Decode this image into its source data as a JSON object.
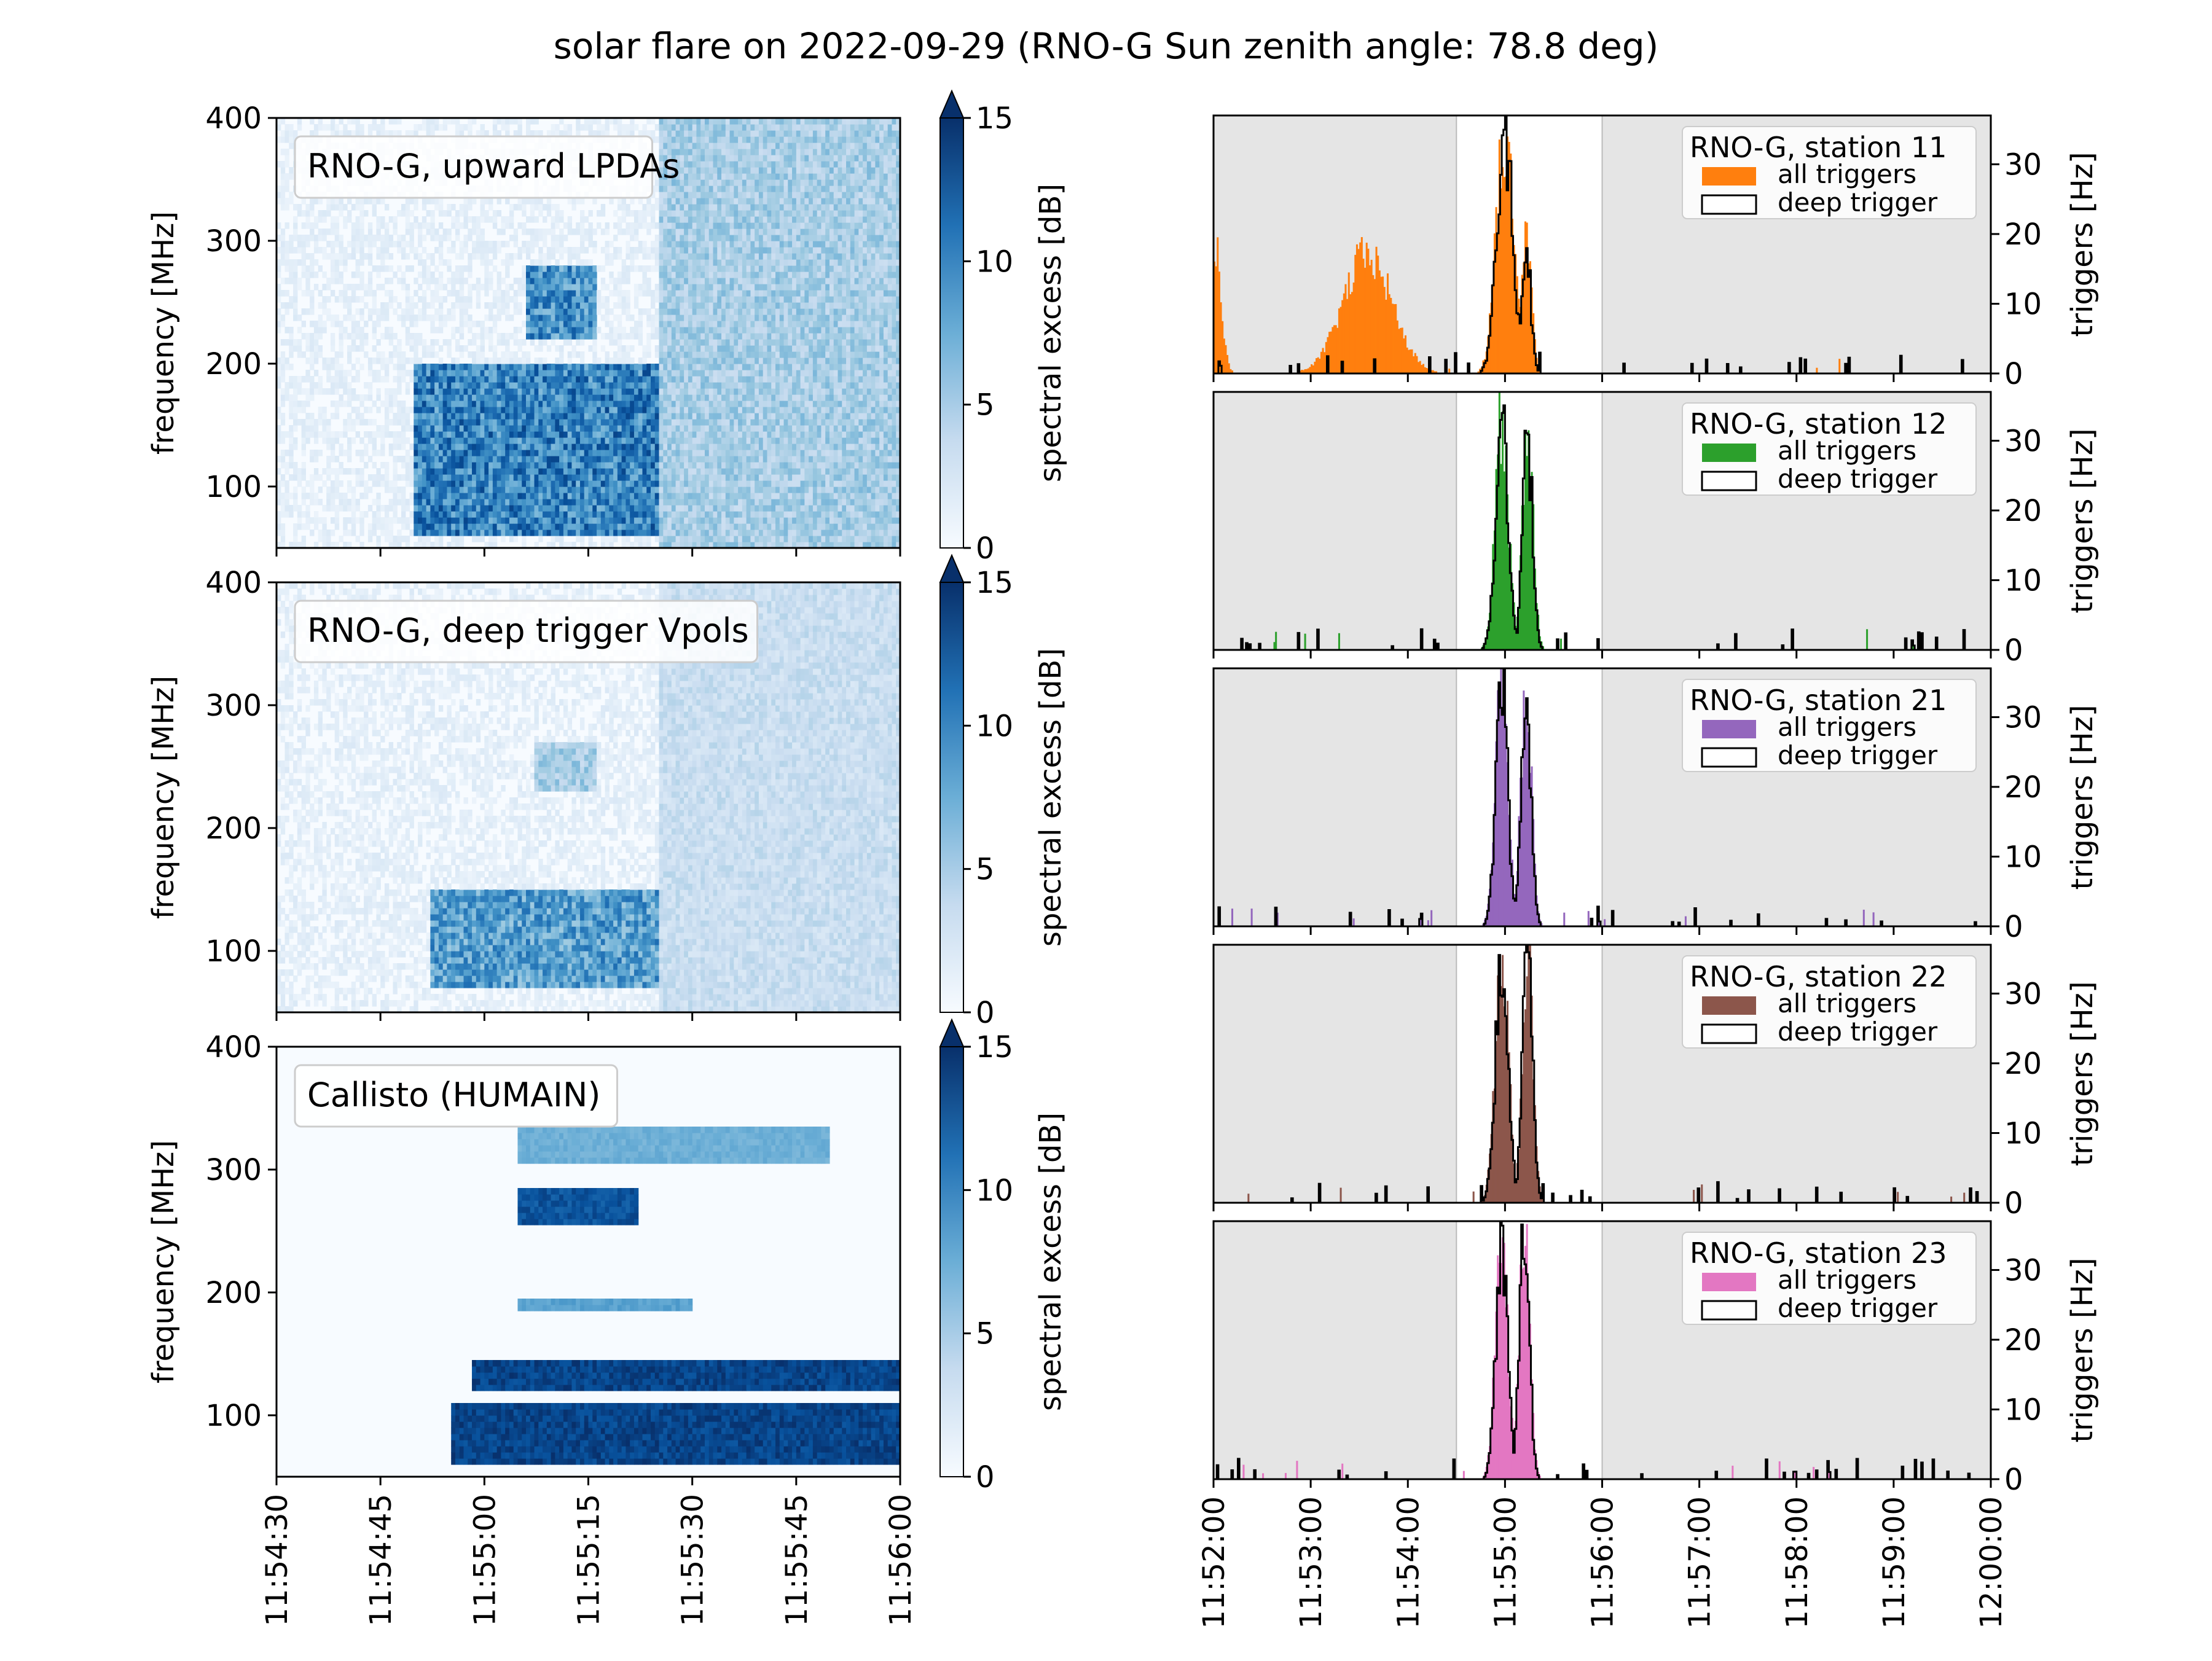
{
  "title": "solar flare on 2022-09-29 (RNO-G Sun zenith angle: 78.8 deg)",
  "colors": {
    "cmap_light": "#f7fbff",
    "cmap_mid": "#6baed6",
    "cmap_dark": "#08306b",
    "shade": "#e5e5e5",
    "outline": "#000000"
  },
  "chart_data": [
    {
      "type": "heatmap",
      "label": "RNO-G, upward LPDAs",
      "ylabel": "frequency [MHz]",
      "ylim": [
        50,
        400
      ],
      "yticks": [
        "100",
        "200",
        "300",
        "400"
      ],
      "xlim": [
        "11:54:30",
        "11:56:00"
      ],
      "colorbar": {
        "label": "spectral excess [dB]",
        "ticks": [
          "0",
          "5",
          "10",
          "15"
        ],
        "range": [
          0,
          15
        ],
        "extend": "max"
      },
      "features": [
        {
          "t": [
            "11:54:50",
            "11:55:25"
          ],
          "f": [
            60,
            200
          ],
          "level": 12
        },
        {
          "t": [
            "11:55:06",
            "11:55:16"
          ],
          "f": [
            220,
            280
          ],
          "level": 11
        },
        {
          "t": [
            "11:55:25",
            "11:56:00"
          ],
          "f": [
            50,
            400
          ],
          "level": 6
        }
      ]
    },
    {
      "type": "heatmap",
      "label": "RNO-G, deep trigger Vpols",
      "ylabel": "frequency [MHz]",
      "ylim": [
        50,
        400
      ],
      "yticks": [
        "100",
        "200",
        "300",
        "400"
      ],
      "xlim": [
        "11:54:30",
        "11:56:00"
      ],
      "colorbar": {
        "label": "spectral excess [dB]",
        "ticks": [
          "0",
          "5",
          "10",
          "15"
        ],
        "range": [
          0,
          15
        ],
        "extend": "max"
      },
      "features": [
        {
          "t": [
            "11:54:52",
            "11:55:25"
          ],
          "f": [
            70,
            150
          ],
          "level": 10
        },
        {
          "t": [
            "11:55:07",
            "11:55:16"
          ],
          "f": [
            230,
            270
          ],
          "level": 6
        },
        {
          "t": [
            "11:55:25",
            "11:56:00"
          ],
          "f": [
            50,
            400
          ],
          "level": 4
        }
      ]
    },
    {
      "type": "heatmap",
      "label": "Callisto (HUMAIN)",
      "ylabel": "frequency [MHz]",
      "ylim": [
        50,
        400
      ],
      "yticks": [
        "100",
        "200",
        "300",
        "400"
      ],
      "xlim": [
        "11:54:30",
        "11:56:00"
      ],
      "xticks": [
        "11:54:30",
        "11:54:45",
        "11:55:00",
        "11:55:15",
        "11:55:30",
        "11:55:45",
        "11:56:00"
      ],
      "colorbar": {
        "label": "spectral excess [dB]",
        "ticks": [
          "0",
          "5",
          "10",
          "15"
        ],
        "range": [
          0,
          15
        ],
        "extend": "max"
      },
      "features": [
        {
          "t": [
            "11:54:58",
            "11:56:00"
          ],
          "f": [
            120,
            145
          ],
          "level": 15
        },
        {
          "t": [
            "11:54:55",
            "11:56:00"
          ],
          "f": [
            60,
            110
          ],
          "level": 15
        },
        {
          "t": [
            "11:55:05",
            "11:55:22"
          ],
          "f": [
            255,
            285
          ],
          "level": 14
        },
        {
          "t": [
            "11:55:05",
            "11:55:50"
          ],
          "f": [
            305,
            335
          ],
          "level": 8
        },
        {
          "t": [
            "11:55:05",
            "11:55:30"
          ],
          "f": [
            185,
            195
          ],
          "level": 9
        }
      ]
    },
    {
      "type": "bar",
      "station": "RNO-G, station 11",
      "ylabel": "triggers [Hz]",
      "ylim": [
        0,
        37
      ],
      "yticks": [
        "0",
        "10",
        "20",
        "30"
      ],
      "xlim": [
        "11:52:00",
        "12:00:00"
      ],
      "shaded": [
        [
          "11:52:00",
          "11:54:30"
        ],
        [
          "11:56:00",
          "12:00:00"
        ]
      ],
      "color": "#ff7f0e",
      "legend": [
        "all triggers",
        "deep trigger"
      ],
      "all_triggers_peaks": [
        {
          "t": "11:52:00",
          "hz": 20,
          "width_min": 0.15
        },
        {
          "t": "11:53:35",
          "hz": 17,
          "width_min": 0.55
        },
        {
          "t": "11:55:00",
          "hz": 35,
          "width_min": 0.2
        },
        {
          "t": "11:55:13",
          "hz": 19,
          "width_min": 0.12
        }
      ],
      "deep_trigger_peaks": [
        {
          "t": "11:55:00",
          "hz": 34,
          "width_min": 0.18
        },
        {
          "t": "11:55:13",
          "hz": 19,
          "width_min": 0.1
        }
      ]
    },
    {
      "type": "bar",
      "station": "RNO-G, station 12",
      "ylabel": "triggers [Hz]",
      "ylim": [
        0,
        37
      ],
      "yticks": [
        "0",
        "10",
        "20",
        "30"
      ],
      "xlim": [
        "11:52:00",
        "12:00:00"
      ],
      "shaded": [
        [
          "11:52:00",
          "11:54:30"
        ],
        [
          "11:56:00",
          "12:00:00"
        ]
      ],
      "color": "#2ca02c",
      "legend": [
        "all triggers",
        "deep trigger"
      ],
      "all_triggers_peaks": [
        {
          "t": "11:54:58",
          "hz": 33,
          "width_min": 0.15
        },
        {
          "t": "11:55:14",
          "hz": 31,
          "width_min": 0.12
        }
      ],
      "deep_trigger_peaks": [
        {
          "t": "11:54:58",
          "hz": 32,
          "width_min": 0.14
        },
        {
          "t": "11:55:14",
          "hz": 30,
          "width_min": 0.11
        }
      ]
    },
    {
      "type": "bar",
      "station": "RNO-G, station 21",
      "ylabel": "triggers [Hz]",
      "ylim": [
        0,
        37
      ],
      "yticks": [
        "0",
        "10",
        "20",
        "30"
      ],
      "xlim": [
        "11:52:00",
        "12:00:00"
      ],
      "shaded": [
        [
          "11:52:00",
          "11:54:30"
        ],
        [
          "11:56:00",
          "12:00:00"
        ]
      ],
      "color": "#9467bd",
      "legend": [
        "all triggers",
        "deep trigger"
      ],
      "all_triggers_peaks": [
        {
          "t": "11:54:58",
          "hz": 36,
          "width_min": 0.14
        },
        {
          "t": "11:55:13",
          "hz": 34,
          "width_min": 0.12
        }
      ],
      "deep_trigger_peaks": [
        {
          "t": "11:54:58",
          "hz": 36,
          "width_min": 0.13
        },
        {
          "t": "11:55:13",
          "hz": 34,
          "width_min": 0.11
        }
      ]
    },
    {
      "type": "bar",
      "station": "RNO-G, station 22",
      "ylabel": "triggers [Hz]",
      "ylim": [
        0,
        37
      ],
      "yticks": [
        "0",
        "10",
        "20",
        "30"
      ],
      "xlim": [
        "11:52:00",
        "12:00:00"
      ],
      "shaded": [
        [
          "11:52:00",
          "11:54:30"
        ],
        [
          "11:56:00",
          "12:00:00"
        ]
      ],
      "color": "#8c564b",
      "legend": [
        "all triggers",
        "deep trigger"
      ],
      "all_triggers_peaks": [
        {
          "t": "11:54:58",
          "hz": 35,
          "width_min": 0.15
        },
        {
          "t": "11:55:14",
          "hz": 36,
          "width_min": 0.12
        }
      ],
      "deep_trigger_peaks": [
        {
          "t": "11:54:58",
          "hz": 35,
          "width_min": 0.14
        },
        {
          "t": "11:55:14",
          "hz": 36,
          "width_min": 0.11
        }
      ]
    },
    {
      "type": "bar",
      "station": "RNO-G, station 23",
      "ylabel": "triggers [Hz]",
      "ylim": [
        0,
        37
      ],
      "yticks": [
        "0",
        "10",
        "20",
        "30"
      ],
      "xlim": [
        "11:52:00",
        "12:00:00"
      ],
      "xticks": [
        "11:52:00",
        "11:53:00",
        "11:54:00",
        "11:55:00",
        "11:56:00",
        "11:57:00",
        "11:58:00",
        "11:59:00",
        "12:00:00"
      ],
      "shaded": [
        [
          "11:52:00",
          "11:54:30"
        ],
        [
          "11:56:00",
          "12:00:00"
        ]
      ],
      "color": "#e377c2",
      "legend": [
        "all triggers",
        "deep trigger"
      ],
      "all_triggers_peaks": [
        {
          "t": "11:54:58",
          "hz": 36,
          "width_min": 0.14
        },
        {
          "t": "11:55:12",
          "hz": 35,
          "width_min": 0.12
        }
      ],
      "deep_trigger_peaks": [
        {
          "t": "11:54:58",
          "hz": 34,
          "width_min": 0.13
        },
        {
          "t": "11:55:12",
          "hz": 35,
          "width_min": 0.11
        }
      ]
    }
  ]
}
